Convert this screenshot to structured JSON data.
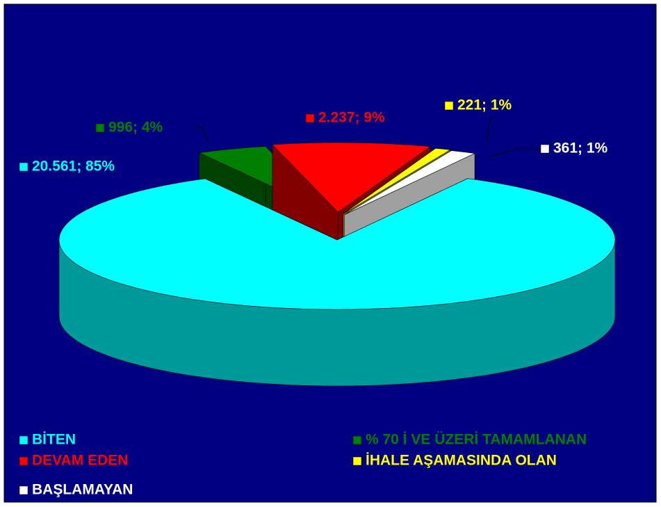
{
  "chart_data": {
    "type": "pie3d",
    "categories": [
      "BİTEN",
      "% 70 İ VE ÜZERİ TAMAMLANAN",
      "DEVAM EDEN",
      "İHALE AŞAMASINDA OLAN",
      "BAŞLAMAYAN"
    ],
    "values": [
      20561,
      996,
      2237,
      221,
      361
    ],
    "value_labels": [
      "20.561; 85%",
      "996; 4%",
      "2.237; 9%",
      "221; 1%",
      "361; 1%"
    ],
    "colors": [
      "#00ffff",
      "#008000",
      "#ff0000",
      "#ffff00",
      "#ffffff"
    ],
    "side_colors": [
      "#009a9a",
      "#004000",
      "#800000",
      "#808000",
      "#a0a0a0"
    ],
    "legend": "bottom"
  }
}
